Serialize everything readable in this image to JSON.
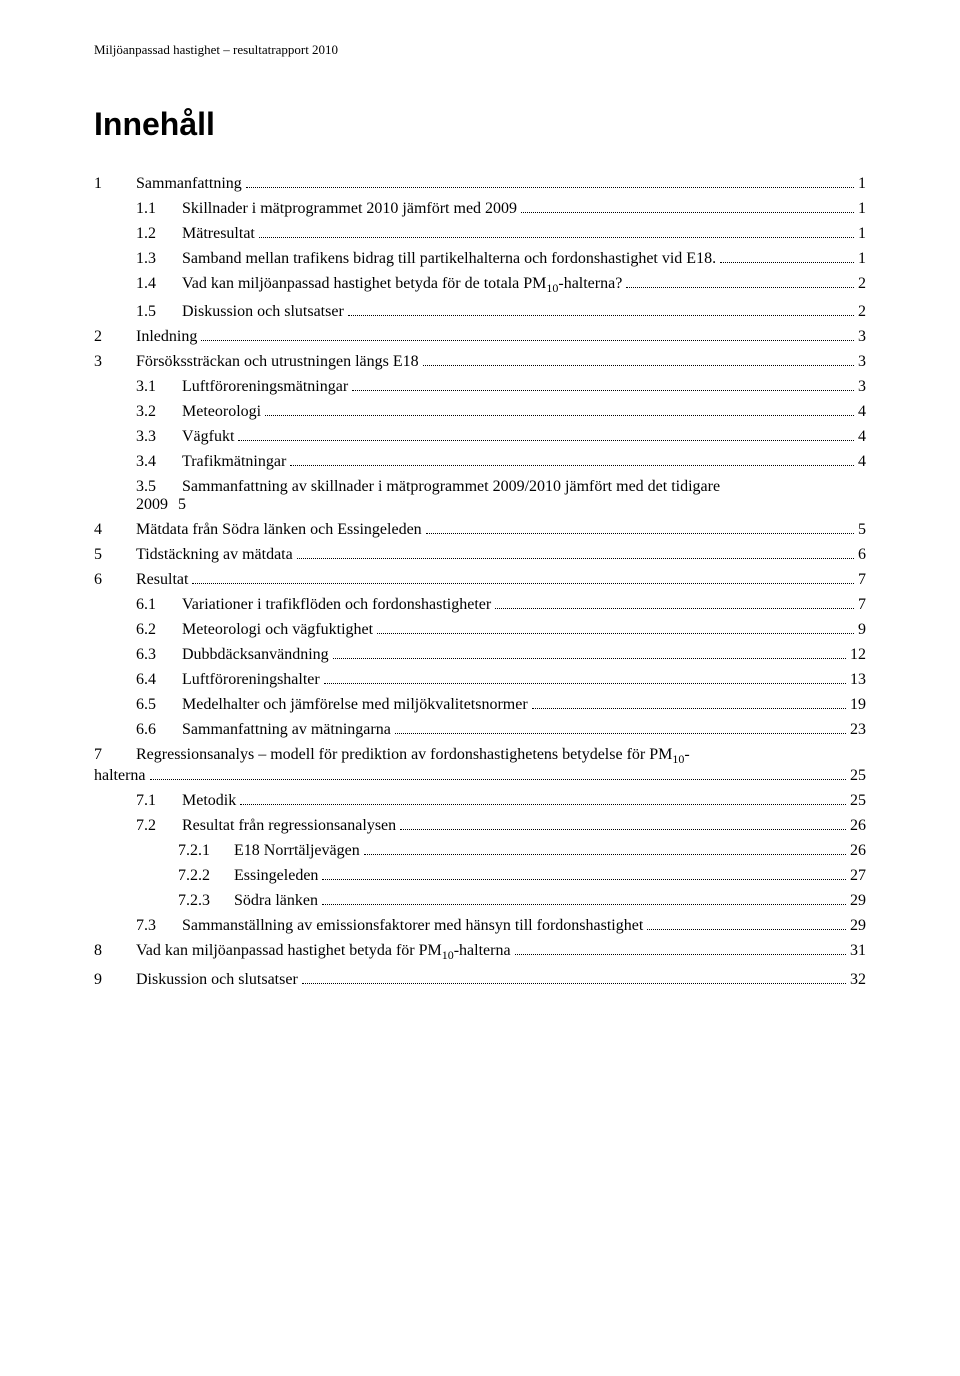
{
  "header": "Miljöanpassad hastighet – resultatrapport 2010",
  "title": "Innehåll",
  "toc": [
    {
      "lvl": 1,
      "num": "1",
      "text": "Sammanfattning",
      "page": "1"
    },
    {
      "lvl": 2,
      "num": "1.1",
      "text": "Skillnader i mätprogrammet 2010 jämfört med 2009",
      "page": "1"
    },
    {
      "lvl": 2,
      "num": "1.2",
      "text": "Mätresultat",
      "page": "1"
    },
    {
      "lvl": 2,
      "num": "1.3",
      "text": "Samband mellan trafikens bidrag till partikelhalterna och fordonshastighet vid E18.",
      "page": "1"
    },
    {
      "lvl": 2,
      "num": "1.4",
      "text": "Vad kan miljöanpassad hastighet betyda för de totala PM₁₀-halterna?",
      "page": "2"
    },
    {
      "lvl": 2,
      "num": "1.5",
      "text": "Diskussion och slutsatser",
      "page": "2"
    },
    {
      "lvl": 1,
      "num": "2",
      "text": "Inledning",
      "page": "3"
    },
    {
      "lvl": 1,
      "num": "3",
      "text": "Försökssträckan och utrustningen längs E18",
      "page": "3"
    },
    {
      "lvl": 2,
      "num": "3.1",
      "text": "Luftföroreningsmätningar",
      "page": "3"
    },
    {
      "lvl": 2,
      "num": "3.2",
      "text": "Meteorologi",
      "page": "4"
    },
    {
      "lvl": 2,
      "num": "3.3",
      "text": "Vägfukt",
      "page": "4"
    },
    {
      "lvl": 2,
      "num": "3.4",
      "text": "Trafikmätningar",
      "page": "4"
    },
    {
      "lvl": 2,
      "num": "3.5",
      "text_a": "Sammanfattning av skillnader i mätprogrammet 2009/2010 jämfört med det tidigare",
      "text_b": "2009",
      "page": "5",
      "multiline_nodots": true
    },
    {
      "lvl": 1,
      "num": "4",
      "text": "Mätdata från Södra länken och Essingeleden",
      "page": "5"
    },
    {
      "lvl": 1,
      "num": "5",
      "text": "Tidstäckning av mätdata",
      "page": "6"
    },
    {
      "lvl": 1,
      "num": "6",
      "text": "Resultat",
      "page": "7"
    },
    {
      "lvl": 2,
      "num": "6.1",
      "text": "Variationer i trafikflöden och fordonshastigheter",
      "page": "7"
    },
    {
      "lvl": 2,
      "num": "6.2",
      "text": "Meteorologi och vägfuktighet",
      "page": "9"
    },
    {
      "lvl": 2,
      "num": "6.3",
      "text": "Dubbdäcksanvändning",
      "page": "12"
    },
    {
      "lvl": 2,
      "num": "6.4",
      "text": "Luftföroreningshalter",
      "page": "13"
    },
    {
      "lvl": 2,
      "num": "6.5",
      "text": "Medelhalter och jämförelse med miljökvalitetsnormer",
      "page": "19"
    },
    {
      "lvl": 2,
      "num": "6.6",
      "text": "Sammanfattning av mätningarna",
      "page": "23"
    },
    {
      "lvl": 1,
      "num": "7",
      "text_a": "Regressionsanalys – modell för prediktion av fordonshastighetens betydelse för PM₁₀-",
      "text_b": "halterna",
      "page": "25",
      "multiline": true
    },
    {
      "lvl": 2,
      "num": "7.1",
      "text": "Metodik",
      "page": "25"
    },
    {
      "lvl": 2,
      "num": "7.2",
      "text": "Resultat från regressionsanalysen",
      "page": "26"
    },
    {
      "lvl": 3,
      "num": "7.2.1",
      "text": "E18 Norrtäljevägen",
      "page": "26"
    },
    {
      "lvl": 3,
      "num": "7.2.2",
      "text": "Essingeleden",
      "page": "27"
    },
    {
      "lvl": 3,
      "num": "7.2.3",
      "text": "Södra länken",
      "page": "29"
    },
    {
      "lvl": 2,
      "num": "7.3",
      "text": "Sammanställning av emissionsfaktorer med hänsyn till fordonshastighet",
      "page": "29"
    },
    {
      "lvl": 1,
      "num": "8",
      "text": "Vad kan miljöanpassad hastighet betyda för PM₁₀-halterna",
      "page": "31"
    },
    {
      "lvl": 1,
      "num": "9",
      "text": "Diskussion och slutsatser",
      "page": "32"
    }
  ]
}
